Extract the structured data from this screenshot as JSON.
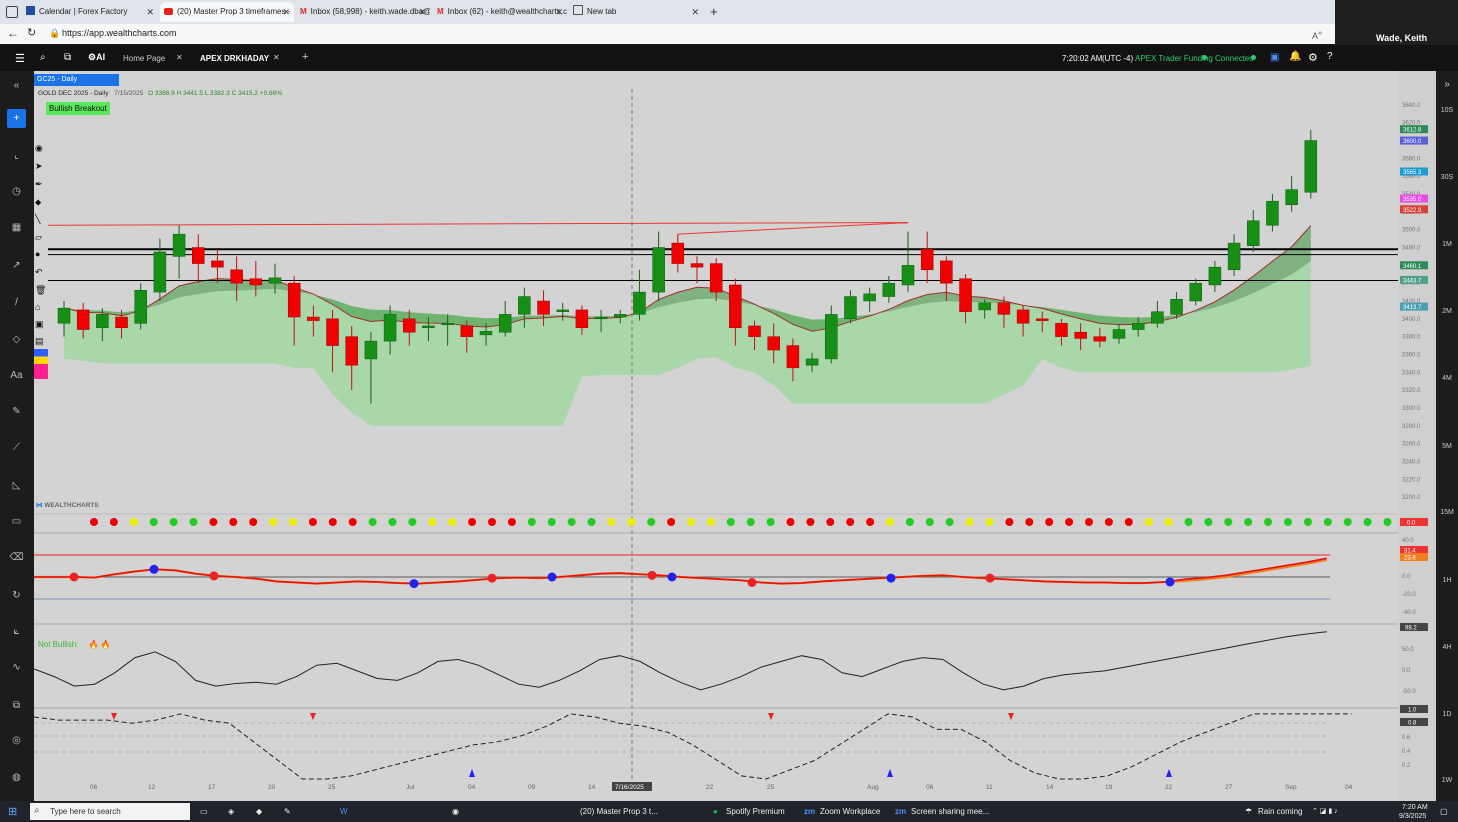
{
  "browser": {
    "tabs": [
      {
        "label": "Calendar | Forex Factory",
        "icon": "calendar-icon"
      },
      {
        "label": "(20) Master Prop 3 timeframes -",
        "icon": "youtube-icon"
      },
      {
        "label": "Inbox (58,998) - keith.wade.dba@",
        "icon": "gmail-icon"
      },
      {
        "label": "Inbox (62) - keith@wealthcharts.c",
        "icon": "gmail-icon"
      },
      {
        "label": "New tab",
        "icon": "newtab-icon"
      }
    ],
    "url": "https://app.wealthcharts.com"
  },
  "zoom_participant": "Wade, Keith",
  "app": {
    "tabs": [
      "Home Page",
      "APEX DRKHADAY"
    ],
    "time": "7:20:02 AM",
    "timezone": "(UTC -4)",
    "account": "APEX Trader Funding",
    "connection": "Connected"
  },
  "chart_header": {
    "symbol_tab": "GC25 - Daily",
    "title": "GOLD DEC 2025 - Daily",
    "date": "7/15/2025",
    "ohlc": "O 3386.9 H 3441.5 L 3382.3 C 3415.2 +0.66%",
    "signal_badge": "Bullish Breakout",
    "crosshair_date": "7/16/2025",
    "watermark": "WEALTHCHARTS",
    "panel3_label": "Not Bullish:"
  },
  "timeframes": [
    "10S",
    "30S",
    "1M",
    "2M",
    "4M",
    "5M",
    "15M",
    "1H",
    "4H",
    "1D",
    "1W"
  ],
  "chart_data": {
    "type": "candlestick",
    "price_axis": {
      "min": 3190,
      "max": 3650,
      "ticks": [
        3640.0,
        3620.0,
        3600.0,
        3580.0,
        3560.0,
        3540.0,
        3520.0,
        3500.0,
        3480.0,
        3460.0,
        3440.0,
        3420.0,
        3400.0,
        3380.0,
        3360.0,
        3340.0,
        3320.0,
        3300.0,
        3280.0,
        3260.0,
        3240.0,
        3220.0,
        3200.0
      ]
    },
    "price_markers": [
      {
        "value": "3612.8",
        "color": "#2e8b57"
      },
      {
        "value": "3600.0",
        "color": "#5b5fd6"
      },
      {
        "value": "3565.3",
        "color": "#1f9bd1"
      },
      {
        "value": "3535.0",
        "color": "#e64ce6"
      },
      {
        "value": "3522.9",
        "color": "#d9403a"
      },
      {
        "value": "3460.1",
        "color": "#2e8b57"
      },
      {
        "value": "3443.7",
        "color": "#4aa08a"
      },
      {
        "value": "3413.7",
        "color": "#4a9fb0"
      }
    ],
    "x_labels": [
      "06",
      "12",
      "17",
      "20",
      "25",
      "Jul",
      "04",
      "09",
      "14",
      "7/16/2025",
      "22",
      "25",
      "Aug",
      "06",
      "11",
      "14",
      "19",
      "22",
      "27",
      "Sep",
      "04"
    ],
    "candles": [
      [
        3395,
        3412,
        3380,
        3420
      ],
      [
        3410,
        3388,
        3378,
        3418
      ],
      [
        3390,
        3405,
        3375,
        3412
      ],
      [
        3402,
        3390,
        3378,
        3410
      ],
      [
        3395,
        3432,
        3388,
        3440
      ],
      [
        3430,
        3475,
        3420,
        3490
      ],
      [
        3470,
        3495,
        3445,
        3505
      ],
      [
        3480,
        3462,
        3440,
        3495
      ],
      [
        3465,
        3458,
        3440,
        3478
      ],
      [
        3455,
        3440,
        3420,
        3470
      ],
      [
        3445,
        3438,
        3425,
        3465
      ],
      [
        3440,
        3446,
        3428,
        3462
      ],
      [
        3440,
        3402,
        3370,
        3448
      ],
      [
        3402,
        3398,
        3380,
        3415
      ],
      [
        3400,
        3370,
        3340,
        3410
      ],
      [
        3380,
        3348,
        3320,
        3392
      ],
      [
        3355,
        3375,
        3305,
        3385
      ],
      [
        3375,
        3405,
        3360,
        3415
      ],
      [
        3400,
        3385,
        3370,
        3410
      ],
      [
        3390,
        3392,
        3375,
        3402
      ],
      [
        3395,
        3395,
        3370,
        3405
      ],
      [
        3392,
        3380,
        3362,
        3398
      ],
      [
        3382,
        3386,
        3370,
        3395
      ],
      [
        3385,
        3405,
        3380,
        3420
      ],
      [
        3405,
        3425,
        3390,
        3435
      ],
      [
        3420,
        3405,
        3392,
        3432
      ],
      [
        3408,
        3410,
        3398,
        3418
      ],
      [
        3410,
        3390,
        3382,
        3415
      ],
      [
        3400,
        3402,
        3385,
        3410
      ],
      [
        3402,
        3405,
        3395,
        3410
      ],
      [
        3405,
        3430,
        3398,
        3455
      ],
      [
        3430,
        3480,
        3420,
        3498
      ],
      [
        3485,
        3462,
        3452,
        3495
      ],
      [
        3462,
        3458,
        3440,
        3470
      ],
      [
        3462,
        3430,
        3420,
        3468
      ],
      [
        3438,
        3390,
        3370,
        3445
      ],
      [
        3392,
        3380,
        3365,
        3398
      ],
      [
        3380,
        3365,
        3350,
        3395
      ],
      [
        3370,
        3345,
        3330,
        3378
      ],
      [
        3348,
        3355,
        3340,
        3362
      ],
      [
        3355,
        3405,
        3350,
        3415
      ],
      [
        3400,
        3425,
        3395,
        3432
      ],
      [
        3420,
        3428,
        3408,
        3435
      ],
      [
        3425,
        3440,
        3418,
        3448
      ],
      [
        3438,
        3460,
        3430,
        3498
      ],
      [
        3478,
        3455,
        3440,
        3498
      ],
      [
        3465,
        3440,
        3420,
        3470
      ],
      [
        3445,
        3408,
        3395,
        3450
      ],
      [
        3410,
        3418,
        3400,
        3422
      ],
      [
        3418,
        3405,
        3390,
        3425
      ],
      [
        3410,
        3395,
        3380,
        3415
      ],
      [
        3400,
        3398,
        3385,
        3408
      ],
      [
        3395,
        3380,
        3370,
        3400
      ],
      [
        3385,
        3378,
        3365,
        3395
      ],
      [
        3380,
        3375,
        3368,
        3390
      ],
      [
        3378,
        3388,
        3372,
        3394
      ],
      [
        3388,
        3395,
        3380,
        3402
      ],
      [
        3395,
        3408,
        3390,
        3420
      ],
      [
        3405,
        3422,
        3400,
        3430
      ],
      [
        3420,
        3440,
        3415,
        3445
      ],
      [
        3438,
        3458,
        3430,
        3465
      ],
      [
        3455,
        3485,
        3448,
        3495
      ],
      [
        3482,
        3510,
        3475,
        3522
      ],
      [
        3505,
        3532,
        3498,
        3540
      ],
      [
        3528,
        3545,
        3520,
        3560
      ],
      [
        3542,
        3600,
        3535,
        3612
      ]
    ],
    "resistance_lines": [
      3478,
      3472,
      3443
    ],
    "panels": [
      {
        "name": "dot-strip",
        "value_label": "0.0"
      },
      {
        "name": "oscillator-1",
        "ticks": [
          "40.0",
          "20.0",
          "0.0",
          "-20.0",
          "-40.0"
        ],
        "markers": [
          "31.4",
          "23.8"
        ]
      },
      {
        "name": "oscillator-2",
        "ticks": [
          "50.0",
          "0.0",
          "-50.0"
        ],
        "markers": [
          "98.2"
        ]
      },
      {
        "name": "oscillator-3",
        "ticks": [
          "0.6",
          "0.4",
          "0.2"
        ],
        "markers": [
          "1.0",
          "0.8"
        ]
      }
    ]
  },
  "taskbar": {
    "search_placeholder": "Type here to search",
    "items": [
      "(20) Master Prop 3 t...",
      "Spotify Premium",
      "Zoom Workplace",
      "Screen sharing mee..."
    ],
    "weather": "Rain coming",
    "time": "7:20 AM",
    "date": "9/3/2025"
  }
}
